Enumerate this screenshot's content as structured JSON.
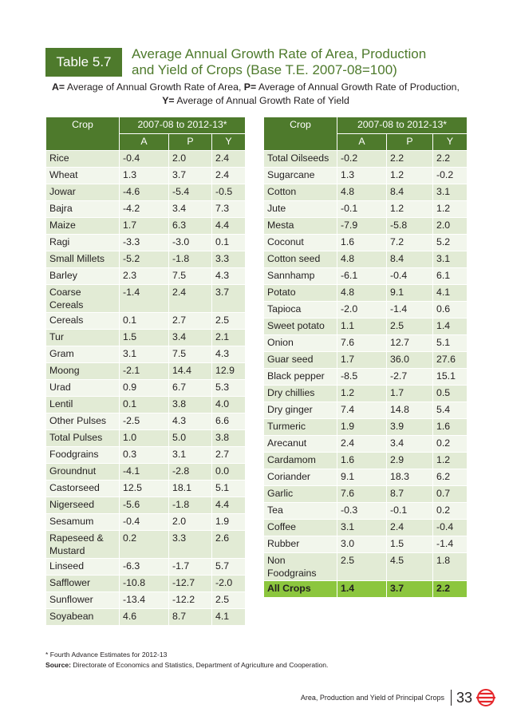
{
  "header": {
    "table_label": "Table 5.7",
    "title_line1": "Average Annual Growth Rate of Area, Production",
    "title_line2": "and Yield of Crops (Base T.E. 2007-08=100)"
  },
  "legend": {
    "a_key": "A=",
    "a_text": " Average of Annual Growth Rate of Area, ",
    "p_key": "P=",
    "p_text": " Average of Annual Growth Rate of Production, ",
    "y_key": "Y=",
    "y_text": " Average of Annual Growth Rate of Yield"
  },
  "columns": {
    "crop": "Crop",
    "period": "2007-08 to 2012-13*",
    "a": "A",
    "p": "P",
    "y": "Y"
  },
  "left_rows": [
    {
      "crop": "Rice",
      "a": "-0.4",
      "p": "2.0",
      "y": "2.4"
    },
    {
      "crop": "Wheat",
      "a": "1.3",
      "p": "3.7",
      "y": "2.4"
    },
    {
      "crop": "Jowar",
      "a": "-4.6",
      "p": "-5.4",
      "y": "-0.5"
    },
    {
      "crop": "Bajra",
      "a": "-4.2",
      "p": "3.4",
      "y": "7.3"
    },
    {
      "crop": "Maize",
      "a": "1.7",
      "p": "6.3",
      "y": "4.4"
    },
    {
      "crop": "Ragi",
      "a": "-3.3",
      "p": "-3.0",
      "y": "0.1"
    },
    {
      "crop": "Small Millets",
      "a": "-5.2",
      "p": "-1.8",
      "y": "3.3"
    },
    {
      "crop": "Barley",
      "a": "2.3",
      "p": "7.5",
      "y": "4.3"
    },
    {
      "crop": "Coarse Cereals",
      "a": "-1.4",
      "p": "2.4",
      "y": "3.7"
    },
    {
      "crop": "Cereals",
      "a": "0.1",
      "p": "2.7",
      "y": "2.5"
    },
    {
      "crop": "Tur",
      "a": "1.5",
      "p": "3.4",
      "y": "2.1"
    },
    {
      "crop": "Gram",
      "a": "3.1",
      "p": "7.5",
      "y": "4.3"
    },
    {
      "crop": "Moong",
      "a": "-2.1",
      "p": "14.4",
      "y": "12.9"
    },
    {
      "crop": "Urad",
      "a": "0.9",
      "p": "6.7",
      "y": "5.3"
    },
    {
      "crop": "Lentil",
      "a": "0.1",
      "p": "3.8",
      "y": "4.0"
    },
    {
      "crop": "Other Pulses",
      "a": "-2.5",
      "p": "4.3",
      "y": "6.6"
    },
    {
      "crop": "Total Pulses",
      "a": "1.0",
      "p": "5.0",
      "y": "3.8"
    },
    {
      "crop": "Foodgrains",
      "a": "0.3",
      "p": "3.1",
      "y": "2.7"
    },
    {
      "crop": "Groundnut",
      "a": "-4.1",
      "p": "-2.8",
      "y": "0.0"
    },
    {
      "crop": "Castorseed",
      "a": "12.5",
      "p": "18.1",
      "y": "5.1"
    },
    {
      "crop": "Nigerseed",
      "a": "-5.6",
      "p": "-1.8",
      "y": "4.4"
    },
    {
      "crop": "Sesamum",
      "a": "-0.4",
      "p": "2.0",
      "y": "1.9"
    },
    {
      "crop": "Rapeseed & Mustard",
      "a": "0.2",
      "p": "3.3",
      "y": "2.6"
    },
    {
      "crop": "Linseed",
      "a": "-6.3",
      "p": "-1.7",
      "y": "5.7"
    },
    {
      "crop": "Safflower",
      "a": "-10.8",
      "p": "-12.7",
      "y": "-2.0"
    },
    {
      "crop": "Sunflower",
      "a": "-13.4",
      "p": "-12.2",
      "y": "2.5"
    },
    {
      "crop": "Soyabean",
      "a": "4.6",
      "p": "8.7",
      "y": "4.1"
    }
  ],
  "right_rows": [
    {
      "crop": "Total Oilseeds",
      "a": "-0.2",
      "p": "2.2",
      "y": "2.2"
    },
    {
      "crop": "Sugarcane",
      "a": "1.3",
      "p": "1.2",
      "y": "-0.2"
    },
    {
      "crop": "Cotton",
      "a": "4.8",
      "p": "8.4",
      "y": "3.1"
    },
    {
      "crop": "Jute",
      "a": "-0.1",
      "p": "1.2",
      "y": "1.2"
    },
    {
      "crop": "Mesta",
      "a": "-7.9",
      "p": "-5.8",
      "y": "2.0"
    },
    {
      "crop": "Coconut",
      "a": "1.6",
      "p": "7.2",
      "y": "5.2"
    },
    {
      "crop": "Cotton seed",
      "a": "4.8",
      "p": "8.4",
      "y": "3.1"
    },
    {
      "crop": "Sannhamp",
      "a": "-6.1",
      "p": "-0.4",
      "y": "6.1"
    },
    {
      "crop": "Potato",
      "a": "4.8",
      "p": "9.1",
      "y": "4.1"
    },
    {
      "crop": "Tapioca",
      "a": "-2.0",
      "p": "-1.4",
      "y": "0.6"
    },
    {
      "crop": "Sweet potato",
      "a": "1.1",
      "p": "2.5",
      "y": "1.4"
    },
    {
      "crop": "Onion",
      "a": "7.6",
      "p": "12.7",
      "y": "5.1"
    },
    {
      "crop": "Guar seed",
      "a": "1.7",
      "p": "36.0",
      "y": "27.6"
    },
    {
      "crop": "Black pepper",
      "a": "-8.5",
      "p": "-2.7",
      "y": "15.1"
    },
    {
      "crop": "Dry chillies",
      "a": "1.2",
      "p": "1.7",
      "y": "0.5"
    },
    {
      "crop": "Dry ginger",
      "a": "7.4",
      "p": "14.8",
      "y": "5.4"
    },
    {
      "crop": "Turmeric",
      "a": "1.9",
      "p": "3.9",
      "y": "1.6"
    },
    {
      "crop": "Arecanut",
      "a": "2.4",
      "p": "3.4",
      "y": "0.2"
    },
    {
      "crop": "Cardamom",
      "a": "1.6",
      "p": "2.9",
      "y": "1.2"
    },
    {
      "crop": "Coriander",
      "a": "9.1",
      "p": "18.3",
      "y": "6.2"
    },
    {
      "crop": "Garlic",
      "a": "7.6",
      "p": "8.7",
      "y": "0.7"
    },
    {
      "crop": "Tea",
      "a": "-0.3",
      "p": "-0.1",
      "y": "0.2"
    },
    {
      "crop": "Coffee",
      "a": "3.1",
      "p": "2.4",
      "y": "-0.4"
    },
    {
      "crop": "Rubber",
      "a": "3.0",
      "p": "1.5",
      "y": "-1.4"
    },
    {
      "crop": "Non Foodgrains",
      "a": "2.5",
      "p": "4.5",
      "y": "1.8"
    },
    {
      "crop": "All Crops",
      "a": "1.4",
      "p": "3.7",
      "y": "2.2",
      "total": true
    }
  ],
  "footnote": {
    "note": "* Fourth Advance Estimates for 2012-13",
    "source_label": "Source:",
    "source_text": " Directorate of Economics and Statistics, Department of Agriculture and Cooperation."
  },
  "page_footer": {
    "running_title": "Area, Production and Yield of Principal Crops",
    "page_number": "33"
  },
  "colors": {
    "accent_green": "#4e7a2c",
    "total_row": "#8cc63e",
    "row_band_light": "#e2ebd5",
    "logo_red": "#e5262a"
  }
}
